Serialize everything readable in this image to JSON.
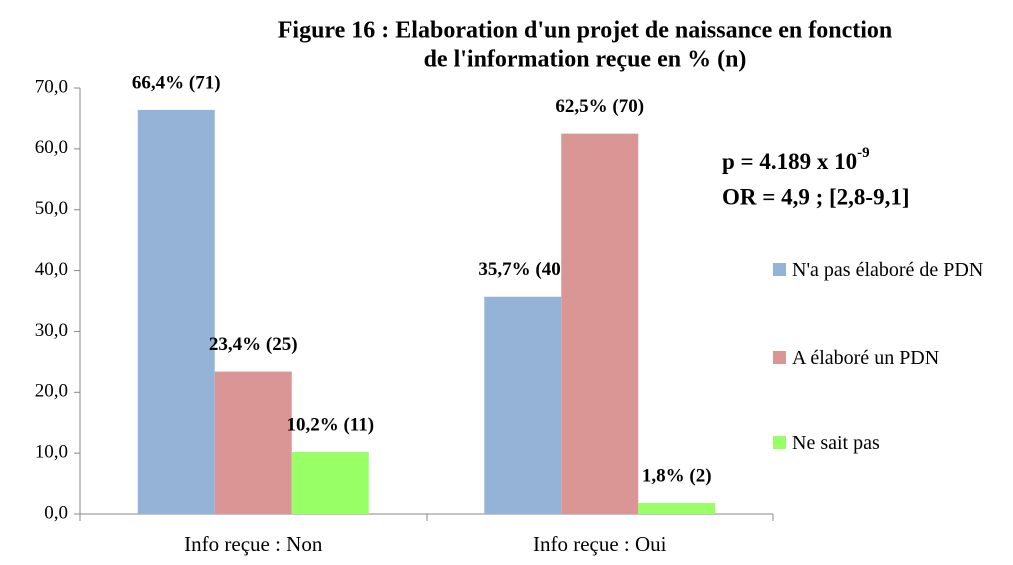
{
  "chart_data": {
    "type": "bar",
    "title": [
      "Figure 16 : Elaboration d'un projet de naissance en fonction",
      "de l'information reçue  en % (n)"
    ],
    "annotations": [
      {
        "text": "p =  4.189 x 10",
        "superscript": "-9"
      },
      {
        "text": "OR = 4,9 ; [2,8-9,1]"
      }
    ],
    "categories": [
      "Info reçue : Non",
      "Info reçue : Oui"
    ],
    "series": [
      {
        "name": "N'a pas élaboré de PDN",
        "color": "#95b3d7",
        "values": [
          66.4,
          35.7
        ],
        "value_labels": [
          "66,4% (71)",
          "35,7% (40)"
        ]
      },
      {
        "name": "A élaboré un PDN",
        "color": "#d99694",
        "values": [
          23.4,
          62.5
        ],
        "value_labels": [
          "23,4% (25)",
          "62,5% (70)"
        ]
      },
      {
        "name": "Ne sait pas",
        "color": "#99ff66",
        "values": [
          10.2,
          1.8
        ],
        "value_labels": [
          "10,2% (11)",
          "1,8% (2)"
        ]
      }
    ],
    "ylim": [
      0,
      70
    ],
    "yticks": [
      {
        "value": 0,
        "label": "0,0"
      },
      {
        "value": 10,
        "label": "10,0"
      },
      {
        "value": 20,
        "label": "20,0"
      },
      {
        "value": 30,
        "label": "30,0"
      },
      {
        "value": 40,
        "label": "40,0"
      },
      {
        "value": 50,
        "label": "50,0"
      },
      {
        "value": 60,
        "label": "60,0"
      },
      {
        "value": 70,
        "label": "70,0"
      }
    ],
    "grid": false,
    "legend": "right"
  }
}
